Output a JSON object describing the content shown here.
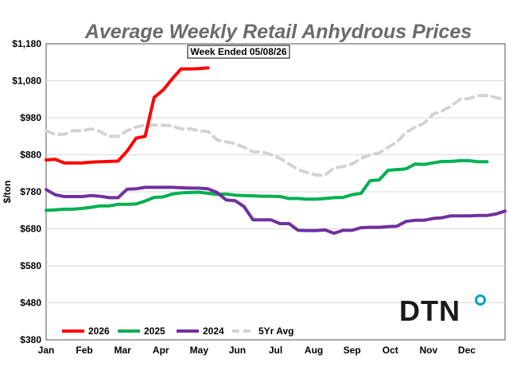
{
  "chart_data": {
    "type": "line",
    "title": "Average Weekly Retail Anhydrous Prices",
    "subtitle": "Week Ended 05/08/26",
    "ylabel": "$/ton",
    "xlabel": "",
    "ylim": [
      380,
      1180
    ],
    "y_ticks": [
      "$380",
      "$480",
      "$580",
      "$680",
      "$780",
      "$880",
      "$980",
      "$1,080",
      "$1,180"
    ],
    "y_tick_values": [
      380,
      480,
      580,
      680,
      780,
      880,
      980,
      1080,
      1180
    ],
    "x_ticks": [
      "Jan",
      "Feb",
      "Mar",
      "Apr",
      "May",
      "Jun",
      "Jul",
      "Aug",
      "Sep",
      "Oct",
      "Nov",
      "Dec"
    ],
    "weeks_per_year": 52,
    "legend_position": "bottom-left",
    "grid": true,
    "series": [
      {
        "name": "2026",
        "color": "#ff0000",
        "dash": "solid",
        "values": [
          866,
          868,
          858,
          858,
          858,
          860,
          861,
          862,
          863,
          890,
          925,
          930,
          1035,
          1055,
          1085,
          1112,
          1112,
          1113,
          1115
        ]
      },
      {
        "name": "2025",
        "color": "#00b050",
        "dash": "solid",
        "values": [
          730,
          731,
          733,
          733,
          735,
          738,
          742,
          742,
          746,
          746,
          747,
          755,
          765,
          766,
          774,
          777,
          778,
          779,
          776,
          773,
          774,
          771,
          770,
          769,
          768,
          768,
          767,
          762,
          762,
          760,
          760,
          762,
          764,
          765,
          772,
          776,
          810,
          812,
          838,
          840,
          842,
          855,
          854,
          858,
          862,
          862,
          864,
          864,
          861,
          861
        ]
      },
      {
        "name": "2024",
        "color": "#7030a0",
        "dash": "solid",
        "values": [
          786,
          772,
          767,
          767,
          767,
          770,
          768,
          764,
          764,
          787,
          788,
          792,
          792,
          792,
          792,
          791,
          790,
          790,
          788,
          778,
          758,
          756,
          740,
          704,
          704,
          704,
          694,
          694,
          676,
          675,
          675,
          677,
          668,
          676,
          676,
          683,
          684,
          684,
          686,
          687,
          700,
          703,
          703,
          708,
          710,
          715,
          715,
          715,
          716,
          716,
          720,
          728
        ]
      },
      {
        "name": "5Yr Avg",
        "color": "#d3d3d3",
        "dash": "dashed",
        "values": [
          945,
          935,
          935,
          945,
          945,
          950,
          943,
          930,
          930,
          945,
          955,
          960,
          960,
          960,
          958,
          950,
          950,
          945,
          943,
          920,
          915,
          910,
          900,
          888,
          888,
          880,
          870,
          855,
          840,
          832,
          825,
          825,
          845,
          848,
          855,
          870,
          880,
          885,
          900,
          915,
          940,
          955,
          965,
          990,
          998,
          1012,
          1030,
          1032,
          1040,
          1040,
          1035,
          1028
        ]
      }
    ]
  },
  "logo": {
    "text": "DTN",
    "dot_color": "#00a3c7"
  }
}
